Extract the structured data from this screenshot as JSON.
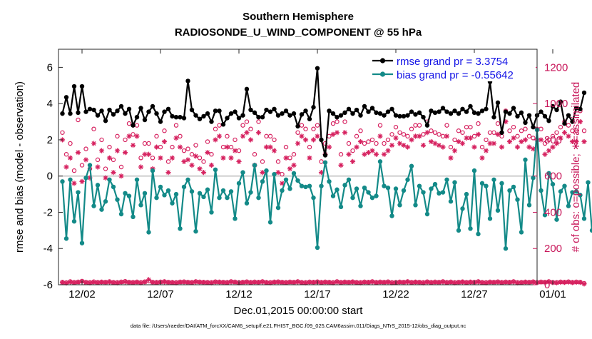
{
  "chart_data": {
    "type": "line",
    "title": "Southern Hemisphere",
    "subtitle": "RADIOSONDE_U_WIND_COMPONENT @ 55 hPa",
    "xlabel": "Dec.01,2015 00:00:00 start",
    "ylabel": "rmse and bias (model - observation)",
    "y2label": "# of obs: o=possible; ∗=assimilated",
    "footer": "data file: /Users/raeder/DAI/ATM_forcXX/CAM6_setup/f.e21.FHIST_BGC.f09_025.CAM6assim.011/Diags_NTrS_2015-12/obs_diag_output.nc",
    "xlim": [
      0.5,
      31.0
    ],
    "ylim": [
      -6,
      7
    ],
    "y2lim": [
      0,
      1300
    ],
    "x_ticks": [
      2,
      7,
      12,
      17,
      22,
      27,
      32
    ],
    "x_tick_labels": [
      "12/02",
      "12/07",
      "12/12",
      "12/17",
      "12/22",
      "12/27",
      "01/01"
    ],
    "y_ticks": [
      -6,
      -4,
      -2,
      0,
      2,
      4,
      6
    ],
    "y_tick_labels": [
      "-6",
      "-4",
      "-2",
      "0",
      "2",
      "4",
      "6"
    ],
    "y2_ticks": [
      0,
      200,
      400,
      600,
      800,
      1000,
      1200
    ],
    "y2_tick_labels": [
      "0",
      "200",
      "400",
      "600",
      "800",
      "1000",
      "1200"
    ],
    "zero_line": 0,
    "x_start": 0.75,
    "x_step": 0.25,
    "colors": {
      "rmse": "#000000",
      "bias": "#138a88",
      "obs": "#d6215f",
      "zero": "#b5b5b5",
      "legend_text": "#1414e6",
      "right_axis": "#c8175a",
      "axes": "#262626"
    },
    "legend": {
      "placement": "top-right",
      "entries": [
        {
          "series": "rmse",
          "label": "rmse grand pr = 3.3754"
        },
        {
          "series": "bias",
          "label": "bias grand pr = -0.55642"
        }
      ]
    },
    "series": [
      {
        "name": "rmse",
        "axis": "left",
        "marker": "filled-circle",
        "values": [
          3.45,
          4.35,
          3.45,
          4.95,
          3.5,
          4.95,
          3.55,
          3.7,
          3.65,
          3.35,
          3.6,
          3.05,
          3.65,
          3.4,
          3.6,
          3.85,
          3.45,
          3.7,
          2.8,
          3.25,
          3.75,
          3.1,
          3.55,
          3.85,
          3.45,
          3.0,
          3.55,
          3.7,
          3.3,
          3.25,
          3.25,
          3.2,
          5.25,
          3.65,
          3.35,
          3.15,
          3.3,
          3.45,
          3.0,
          3.6,
          3.6,
          2.85,
          3.2,
          3.45,
          3.55,
          3.2,
          3.35,
          4.8,
          3.65,
          3.5,
          3.25,
          3.25,
          3.65,
          3.55,
          3.7,
          3.35,
          3.45,
          3.6,
          3.35,
          3.45,
          2.75,
          3.4,
          3.6,
          3.15,
          3.8,
          5.95,
          2.0,
          1.15,
          3.6,
          3.45,
          3.25,
          3.35,
          3.5,
          3.7,
          3.45,
          3.65,
          3.35,
          3.85,
          3.55,
          3.75,
          3.5,
          3.45,
          3.35,
          3.55,
          3.7,
          3.35,
          3.3,
          3.3,
          3.35,
          3.55,
          3.4,
          3.5,
          3.25,
          2.8,
          3.6,
          3.5,
          3.55,
          3.75,
          3.55,
          3.45,
          3.6,
          3.45,
          3.7,
          3.55,
          3.85,
          3.5,
          3.45,
          3.6,
          3.7,
          5.2,
          3.25,
          4.05,
          2.4,
          3.55,
          3.45,
          3.75,
          3.3,
          3.5,
          2.95,
          3.35,
          2.7,
          3.35,
          3.55,
          3.3,
          3.05,
          3.85,
          3.65,
          4.1,
          2.9,
          3.35,
          3.0,
          3.75,
          3.7,
          4.6
        ]
      },
      {
        "name": "bias",
        "axis": "left",
        "marker": "filled-circle",
        "values": [
          -0.3,
          -3.45,
          -0.2,
          -2.5,
          -0.9,
          -3.7,
          -0.1,
          0.6,
          -1.65,
          -0.5,
          -1.85,
          -1.4,
          -0.2,
          -0.6,
          -1.3,
          -2.1,
          -0.95,
          -1.1,
          -2.25,
          -0.2,
          -1.6,
          -0.95,
          -3.1,
          0.3,
          -1.2,
          -0.6,
          -1.05,
          -0.8,
          -1.5,
          -1.0,
          -2.9,
          -0.6,
          -0.2,
          -0.85,
          -3.05,
          -0.95,
          -1.15,
          -0.75,
          -2.0,
          0.35,
          -1.2,
          -0.8,
          -1.2,
          -0.85,
          -2.35,
          -0.4,
          0.2,
          -1.5,
          -0.9,
          0.6,
          -1.2,
          -0.3,
          0.3,
          -2.55,
          0.1,
          -1.75,
          -0.8,
          -0.2,
          -0.7,
          0.15,
          -0.25,
          -0.55,
          -0.6,
          -0.55,
          -1.2,
          -3.95,
          -0.55,
          0.75,
          -0.3,
          -1.1,
          -0.75,
          -1.7,
          -0.5,
          -0.2,
          -1.2,
          -0.7,
          -1.65,
          -0.65,
          -0.9,
          -1.2,
          -1.1,
          0.8,
          -0.55,
          -0.65,
          -2.2,
          -0.7,
          -1.6,
          -0.8,
          -0.2,
          0.55,
          -1.6,
          -0.55,
          -0.9,
          -2.1,
          -0.7,
          -0.45,
          -0.95,
          -0.9,
          -0.2,
          -1.4,
          -0.35,
          -3.0,
          -1.8,
          -1.0,
          -2.9,
          0.3,
          -3.2,
          -0.4,
          -0.55,
          -2.35,
          -0.2,
          -1.9,
          -0.4,
          -4.0,
          -0.8,
          -0.6,
          -1.3,
          -3.1,
          0.9,
          -1.6,
          -0.1,
          2.55,
          -0.8,
          -2.15,
          0.15,
          -0.45,
          -2.4,
          -0.85,
          -0.55,
          -1.65,
          -0.9,
          -0.85,
          -1.05,
          -2.35,
          -0.35,
          -3.0
        ]
      },
      {
        "name": "obs_possible",
        "axis": "right",
        "marker": "open-circle",
        "values": [
          840,
          720,
          780,
          630,
          910,
          660,
          750,
          640,
          860,
          690,
          800,
          640,
          760,
          690,
          820,
          650,
          800,
          890,
          830,
          880,
          700,
          780,
          780,
          700,
          820,
          760,
          850,
          680,
          760,
          880,
          820,
          740,
          750,
          720,
          770,
          700,
          680,
          790,
          720,
          860,
          880,
          760,
          820,
          760,
          800,
          740,
          880,
          900,
          860,
          720,
          900,
          680,
          820,
          820,
          800,
          680,
          610,
          760,
          700,
          720,
          840,
          880,
          860,
          760,
          860,
          880,
          680,
          780,
          820,
          890,
          900,
          720,
          900,
          780,
          740,
          820,
          850,
          780,
          790,
          800,
          780,
          880,
          780,
          800,
          830,
          870,
          840,
          830,
          820,
          860,
          880,
          880,
          830,
          900,
          850,
          840,
          830,
          820,
          880,
          760,
          800,
          850,
          840,
          870,
          870,
          820,
          890,
          760,
          800,
          840,
          840,
          890,
          820,
          960,
          850,
          870,
          820,
          850,
          860,
          820,
          810,
          860,
          860,
          780,
          800,
          820,
          840,
          870,
          900,
          880,
          850,
          850,
          960,
          850
        ]
      },
      {
        "name": "obs_assimilated",
        "axis": "right",
        "marker": "asterisk",
        "values": [
          800,
          650,
          700,
          560,
          730,
          570,
          690,
          590,
          780,
          650,
          740,
          590,
          700,
          620,
          740,
          600,
          730,
          820,
          770,
          820,
          650,
          720,
          720,
          640,
          760,
          700,
          790,
          620,
          700,
          810,
          760,
          680,
          690,
          660,
          710,
          640,
          620,
          730,
          660,
          800,
          820,
          700,
          760,
          700,
          740,
          680,
          820,
          840,
          800,
          660,
          840,
          620,
          760,
          760,
          740,
          620,
          560,
          700,
          640,
          660,
          780,
          820,
          800,
          700,
          800,
          820,
          620,
          720,
          760,
          830,
          840,
          660,
          840,
          720,
          680,
          760,
          790,
          720,
          730,
          740,
          720,
          820,
          720,
          740,
          770,
          810,
          780,
          770,
          760,
          800,
          820,
          820,
          770,
          840,
          790,
          780,
          770,
          760,
          820,
          700,
          740,
          790,
          780,
          810,
          810,
          760,
          830,
          700,
          740,
          780,
          780,
          830,
          760,
          900,
          790,
          810,
          760,
          790,
          800,
          760,
          750,
          800,
          800,
          720,
          740,
          760,
          780,
          810,
          840,
          820,
          790,
          790,
          900,
          790
        ]
      },
      {
        "name": "obs_low_possible",
        "axis": "right",
        "marker": "open-circle",
        "values": [
          15,
          12,
          18,
          14,
          16,
          20,
          15,
          13,
          17,
          14,
          16,
          15,
          18,
          14,
          13,
          16,
          19,
          15,
          14,
          16,
          13,
          17,
          20,
          15,
          14,
          16,
          18,
          15,
          14,
          13,
          16,
          17,
          15,
          14,
          18,
          16,
          15,
          14,
          13,
          17,
          16,
          15,
          14,
          18,
          16,
          13,
          15,
          17,
          14,
          16,
          15,
          18,
          14,
          13,
          16,
          17,
          15,
          14,
          16,
          15,
          18,
          14,
          13,
          16,
          15,
          17,
          14,
          16,
          15,
          13,
          18,
          14,
          16,
          15,
          17,
          14,
          13,
          16,
          15,
          18,
          14,
          16,
          15,
          17,
          13,
          14,
          16,
          15,
          18,
          14,
          16,
          15,
          13,
          17,
          14,
          16,
          15,
          18,
          14,
          16,
          13,
          15,
          17,
          14,
          16,
          15,
          18,
          14,
          13,
          16,
          15,
          17,
          14,
          16,
          15,
          18,
          13,
          14,
          16,
          15,
          17,
          14,
          16,
          15,
          18,
          14,
          13,
          16,
          15,
          17,
          14,
          16,
          15,
          8
        ]
      },
      {
        "name": "obs_low_assimilated",
        "axis": "right",
        "marker": "asterisk",
        "values": [
          12,
          10,
          15,
          12,
          14,
          18,
          12,
          11,
          14,
          12,
          14,
          13,
          15,
          12,
          11,
          14,
          16,
          13,
          12,
          14,
          11,
          15,
          28,
          13,
          12,
          14,
          16,
          13,
          12,
          11,
          14,
          15,
          13,
          12,
          16,
          14,
          13,
          12,
          11,
          15,
          14,
          13,
          12,
          16,
          14,
          11,
          13,
          15,
          12,
          14,
          13,
          16,
          12,
          11,
          14,
          15,
          13,
          12,
          14,
          13,
          16,
          12,
          11,
          14,
          13,
          15,
          12,
          14,
          13,
          11,
          16,
          12,
          14,
          13,
          15,
          12,
          11,
          14,
          13,
          16,
          12,
          14,
          13,
          15,
          11,
          12,
          14,
          13,
          16,
          12,
          14,
          13,
          11,
          15,
          12,
          14,
          13,
          16,
          12,
          14,
          11,
          13,
          15,
          12,
          14,
          13,
          16,
          12,
          11,
          14,
          13,
          15,
          12,
          14,
          13,
          16,
          11,
          12,
          14,
          13,
          15,
          12,
          14,
          13,
          16,
          12,
          11,
          14,
          13,
          15,
          12,
          14,
          13,
          5
        ]
      }
    ]
  }
}
